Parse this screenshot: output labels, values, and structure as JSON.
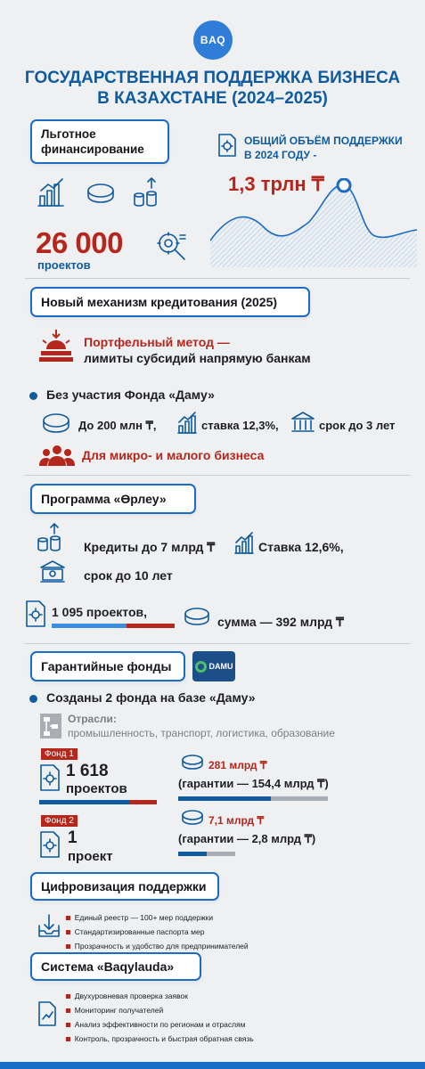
{
  "logo": "BAQ",
  "title_line1": "ГОСУДАРСТВЕННАЯ ПОДДЕРЖКА БИЗНЕСА",
  "title_line2": "В КАЗАХСТАНЕ (2024–2025)",
  "section1": {
    "pill_line1": "Льготное",
    "pill_line2": "финансирование",
    "total_line1": "ОБЩИЙ ОБЪЁМ ПОДДЕРЖКИ",
    "total_line2": "В 2024 ГОДУ -",
    "total_value": "1,3 трлн ₸",
    "projects_value": "26 000",
    "projects_label": "проектов"
  },
  "section2": {
    "pill": "Новый механизм кредитования (2025)",
    "method_line1": "Портфельный метод —",
    "method_line2": "лимиты субсидий напрямую банкам",
    "bullet": "Без участия Фонда «Даму»",
    "amount": "До 200 млн ₸,",
    "rate": "ставка 12,3%,",
    "term": "срок до 3 лет",
    "target": "Для микро- и малого бизнеса"
  },
  "section3": {
    "pill": "Программа «Өрлеу»",
    "credits": "Кредиты до 7 млрд ₸",
    "rate": "Ставка 12,6%,",
    "term": "срок до 10 лет",
    "projects": "1 095 проектов,",
    "sum": "сумма — 392 млрд ₸"
  },
  "section4": {
    "pill": "Гарантийные фонды",
    "damu_logo": "DAMU",
    "bullet": "Созданы 2 фонда на базе «Даму»",
    "sectors_label": "Отрасли:",
    "sectors_value": "промышленность, транспорт, логистика, образование",
    "fund1_tag": "Фонд 1",
    "fund1_count": "1 618",
    "fund1_label": "проектов",
    "fund1_amount": "281 млрд ₸",
    "fund1_guarantee": "(гарантии — 154,4 млрд ₸)",
    "fund2_tag": "Фонд 2",
    "fund2_count": "1",
    "fund2_label": "проект",
    "fund2_amount": "7,1 млрд ₸",
    "fund2_guarantee": "(гарантии — 2,8 млрд ₸)"
  },
  "section5": {
    "pill": "Цифровизация поддержки",
    "items": [
      "Единый реестр — 100+ мер поддержки",
      "Стандартизированные паспорта мер",
      "Прозрачность и удобство для предпринимателей"
    ]
  },
  "section6": {
    "pill": "Система «Baqylauda»",
    "items": [
      "Двухуровневая проверка заявок",
      "Мониторинг получателей",
      "Анализ эффективности по регионам и отраслям",
      "Контроль, прозрачность и быстрая обратная связь"
    ]
  },
  "colors": {
    "blue": "#0f5b9e",
    "red": "#b5261c",
    "accent": "#1b6cc4"
  }
}
